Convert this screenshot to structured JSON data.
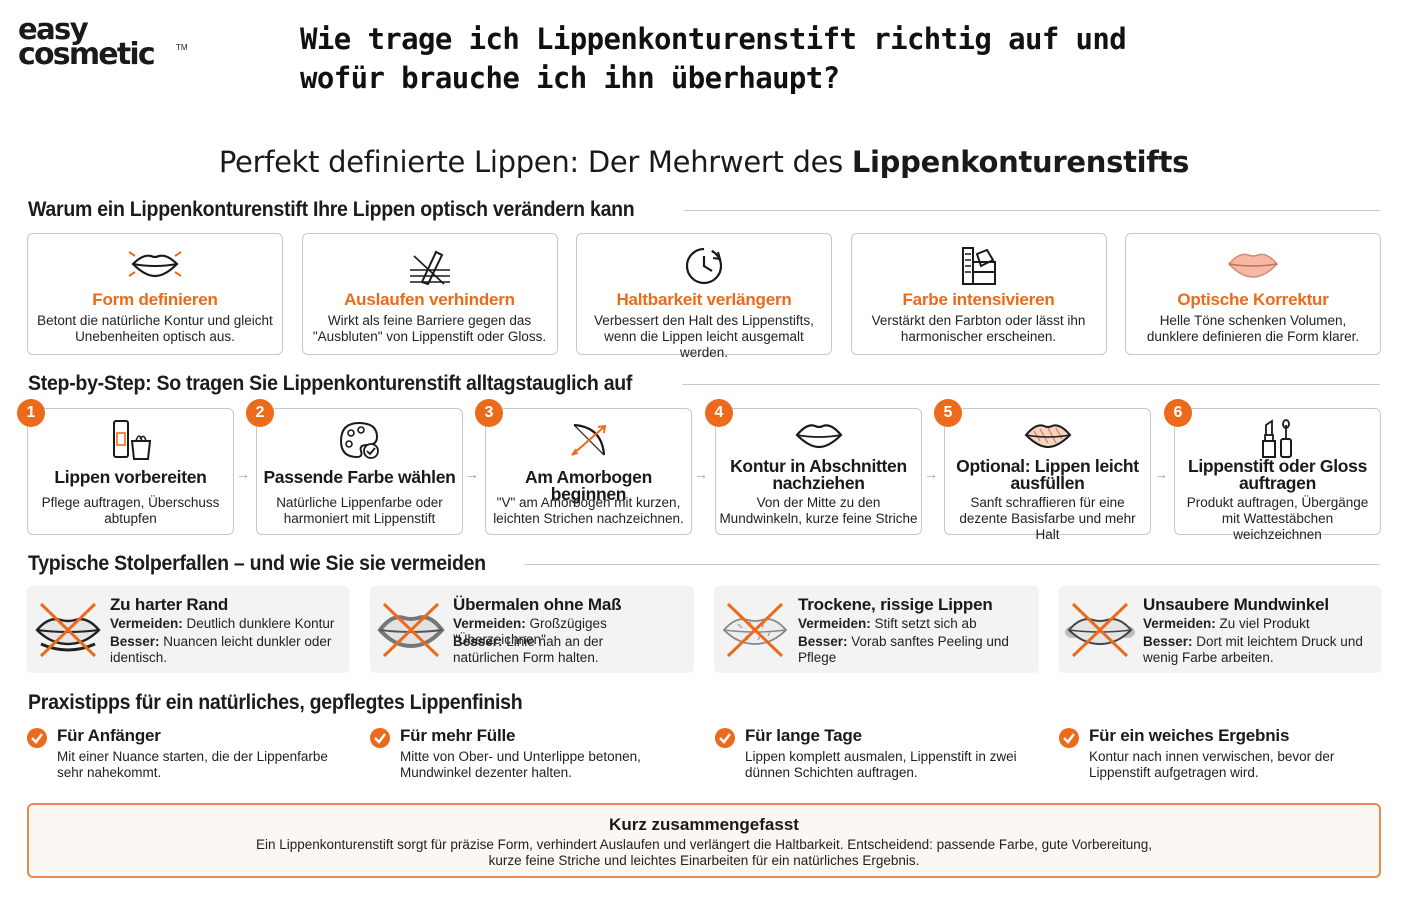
{
  "brand": {
    "line1": "easy",
    "line2": "cosmetic",
    "tm": "TM"
  },
  "page_title": "Wie trage ich Lippenkonturenstift richtig auf und wofür brauche ich ihn überhaupt?",
  "subtitle": {
    "prefix": "Perfekt definierte Lippen: Der Mehrwert des ",
    "bold": "Lippenkonturenstifts"
  },
  "colors": {
    "accent": "#ec6a1b",
    "border": "#c9c9c9",
    "pitfall_bg": "#f3f3f3",
    "summary_border": "#ec8a4e"
  },
  "section_why": {
    "heading": "Warum ein Lippenkonturenstift Ihre Lippen optisch verändern kann",
    "cards": [
      {
        "icon": "lips-outline-icon",
        "title": "Form definieren",
        "desc": "Betont die natürliche Kontur und gleicht Unebenheiten optisch aus."
      },
      {
        "icon": "pencil-barrier-icon",
        "title": "Auslaufen verhindern",
        "desc": "Wirkt als feine Barriere gegen das \"Ausbluten\" von Lippenstift oder Gloss."
      },
      {
        "icon": "clock-icon",
        "title": "Haltbarkeit verlängern",
        "desc": "Verbessert den Halt des Lippenstifts, wenn die Lippen leicht ausgemalt werden."
      },
      {
        "icon": "color-swatch-icon",
        "title": "Farbe intensivieren",
        "desc": "Verstärkt den Farbton oder lässt ihn harmonischer erscheinen."
      },
      {
        "icon": "lips-filled-icon",
        "title": "Optische Korrektur",
        "desc": "Helle Töne schenken Volumen, dunklere definieren die Form klarer."
      }
    ]
  },
  "section_steps": {
    "heading": "Step-by-Step: So tragen Sie Lippenkonturenstift alltagstauglich auf",
    "steps": [
      {
        "num": "1",
        "icon": "skincare-tube-icon",
        "title": "Lippen vorbereiten",
        "desc": "Pflege auftragen, Überschuss abtupfen"
      },
      {
        "num": "2",
        "icon": "palette-icon",
        "title": "Passende Farbe wählen",
        "desc": "Natürliche Lippenfarbe oder harmoniert mit Lippenstift"
      },
      {
        "num": "3",
        "icon": "bow-arrow-icon",
        "title": "Am Amorbogen beginnen",
        "desc": "\"V\" am Amorbogen mit kurzen, leichten Strichen nachzeichnen."
      },
      {
        "num": "4",
        "icon": "lips-outline-icon",
        "title": "Kontur in Abschnitten nachziehen",
        "desc": "Von der Mitte zu den Mundwinkeln, kurze feine Striche"
      },
      {
        "num": "5",
        "icon": "lips-hatched-icon",
        "title": "Optional: Lippen leicht ausfüllen",
        "desc": "Sanft schraffieren für eine dezente Basisfarbe und mehr Halt"
      },
      {
        "num": "6",
        "icon": "lipstick-gloss-icon",
        "title": "Lippenstift oder Gloss auftragen",
        "desc": "Produkt auftragen, Übergänge mit Wattestäbchen weichzeichnen"
      }
    ]
  },
  "section_pitfalls": {
    "heading": "Typische Stolperfallen – und wie Sie sie vermeiden",
    "avoid_label": "Vermeiden:",
    "better_label": "Besser:",
    "items": [
      {
        "icon": "crossed-lips-icon",
        "title": "Zu harter Rand",
        "avoid": " Deutlich dunklere Kontur",
        "better": " Nuancen leicht dunkler oder identisch."
      },
      {
        "icon": "crossed-lips-icon",
        "title": "Übermalen ohne Maß",
        "avoid": " Großzügiges \"Überzeichnen\"",
        "better": " Linie nah an der natürlichen Form halten."
      },
      {
        "icon": "crossed-lips-icon",
        "title": "Trockene, rissige Lippen",
        "avoid": " Stift setzt sich ab",
        "better": " Vorab sanftes Peeling und Pflege"
      },
      {
        "icon": "crossed-lips-icon",
        "title": "Unsaubere Mundwinkel",
        "avoid": " Zu viel Produkt",
        "better": " Dort mit leichtem Druck und wenig Farbe arbeiten."
      }
    ]
  },
  "section_tips": {
    "heading": "Praxistipps für ein natürliches, gepflegtes Lippenfinish",
    "items": [
      {
        "icon": "check-icon",
        "title": "Für Anfänger",
        "desc": "Mit einer Nuance starten, die der Lippenfarbe sehr nahekommt."
      },
      {
        "icon": "check-icon",
        "title": "Für mehr Fülle",
        "desc": "Mitte von Ober- und Unterlippe betonen, Mundwinkel dezenter halten."
      },
      {
        "icon": "check-icon",
        "title": "Für lange Tage",
        "desc": "Lippen komplett ausmalen, Lippenstift in zwei dünnen Schichten auftragen."
      },
      {
        "icon": "check-icon",
        "title": "Für ein weiches Ergebnis",
        "desc": "Kontur nach innen verwischen, bevor der Lippenstift aufgetragen wird."
      }
    ]
  },
  "summary": {
    "title": "Kurz zusammengefasst",
    "text_line1": "Ein Lippenkonturenstift sorgt für präzise Form, verhindert Auslaufen und verlängert die Haltbarkeit. Entscheidend: passende Farbe, gute Vorbereitung,",
    "text_line2": "kurze feine Striche und leichtes Einarbeiten für ein natürliches Ergebnis."
  }
}
